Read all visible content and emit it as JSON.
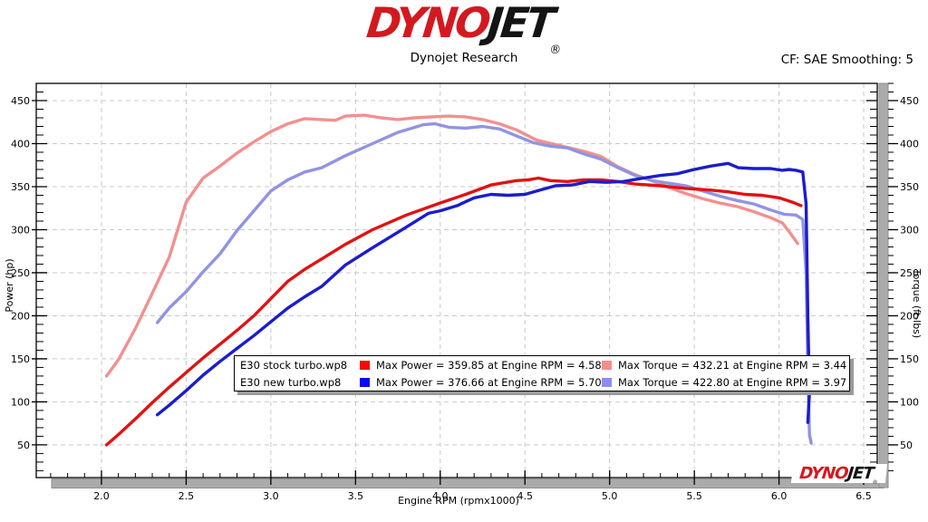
{
  "header": {
    "logo_dyno": "DYNO",
    "logo_jet": "JET",
    "registered": "®",
    "subtitle": "Dynojet Research",
    "correction": "CF: SAE Smoothing: 5"
  },
  "watermark": {
    "logo_dyno": "DYNO",
    "logo_jet": "JET",
    "registered": "®"
  },
  "legend": {
    "rows": [
      {
        "file": "E30 stock turbo.wp8",
        "power_color": "#f50808",
        "power_text": "Max Power = 359.85 at Engine RPM = 4.58",
        "torque_color": "#f88c8c",
        "torque_text": "Max Torque = 432.21 at Engine RPM = 3.44"
      },
      {
        "file": "E30 new turbo.wp8",
        "power_color": "#0808f0",
        "power_text": "Max Power = 376.66 at Engine RPM = 5.70",
        "torque_color": "#8c8cf8",
        "torque_text": "Max Torque = 422.80 at Engine RPM = 3.97"
      }
    ]
  },
  "chart_data": {
    "type": "line",
    "xlabel": "Engine RPM (rpmx1000)",
    "ylabel_left": "Power (hp)",
    "ylabel_right": "Torque (ft-lbs)",
    "x_range": [
      1.615,
      6.58
    ],
    "y_range": [
      12,
      470
    ],
    "x_major_ticks": [
      2.0,
      2.5,
      3.0,
      3.5,
      4.0,
      4.5,
      5.0,
      5.5,
      6.0,
      6.5
    ],
    "x_minor_step": 0.1,
    "y_major_ticks": [
      50,
      100,
      150,
      200,
      250,
      300,
      350,
      400,
      450
    ],
    "y_minor_step": 10,
    "grid": true,
    "grid_color": "#c9c9c9",
    "series": [
      {
        "name": "E30 stock turbo.wp8 - Torque",
        "color": "#f2908f",
        "points": [
          [
            2.03,
            130
          ],
          [
            2.1,
            149
          ],
          [
            2.2,
            185
          ],
          [
            2.3,
            226
          ],
          [
            2.4,
            268
          ],
          [
            2.5,
            332
          ],
          [
            2.6,
            360
          ],
          [
            2.7,
            374
          ],
          [
            2.8,
            389
          ],
          [
            2.9,
            402
          ],
          [
            3.0,
            414
          ],
          [
            3.1,
            423
          ],
          [
            3.2,
            429
          ],
          [
            3.3,
            428
          ],
          [
            3.38,
            427
          ],
          [
            3.44,
            432
          ],
          [
            3.55,
            433
          ],
          [
            3.65,
            430
          ],
          [
            3.75,
            428
          ],
          [
            3.85,
            430
          ],
          [
            3.95,
            431
          ],
          [
            4.05,
            432
          ],
          [
            4.15,
            431
          ],
          [
            4.25,
            428
          ],
          [
            4.35,
            423
          ],
          [
            4.45,
            416
          ],
          [
            4.57,
            404
          ],
          [
            4.7,
            398
          ],
          [
            4.85,
            391
          ],
          [
            4.95,
            385
          ],
          [
            5.05,
            373
          ],
          [
            5.15,
            364
          ],
          [
            5.25,
            357
          ],
          [
            5.35,
            349
          ],
          [
            5.45,
            342
          ],
          [
            5.55,
            336
          ],
          [
            5.65,
            331
          ],
          [
            5.75,
            327
          ],
          [
            5.85,
            321
          ],
          [
            5.95,
            314
          ],
          [
            6.02,
            308
          ],
          [
            6.07,
            295
          ],
          [
            6.11,
            284
          ]
        ]
      },
      {
        "name": "E30 new turbo.wp8 - Torque",
        "color": "#9193e2",
        "points": [
          [
            2.33,
            192
          ],
          [
            2.4,
            209
          ],
          [
            2.5,
            228
          ],
          [
            2.6,
            251
          ],
          [
            2.7,
            272
          ],
          [
            2.8,
            299
          ],
          [
            2.9,
            322
          ],
          [
            3.0,
            345
          ],
          [
            3.1,
            358
          ],
          [
            3.2,
            367
          ],
          [
            3.3,
            372
          ],
          [
            3.44,
            386
          ],
          [
            3.6,
            400
          ],
          [
            3.75,
            413
          ],
          [
            3.9,
            422
          ],
          [
            3.97,
            423
          ],
          [
            4.05,
            419
          ],
          [
            4.15,
            418
          ],
          [
            4.25,
            420
          ],
          [
            4.35,
            417
          ],
          [
            4.45,
            409
          ],
          [
            4.55,
            401
          ],
          [
            4.65,
            397
          ],
          [
            4.75,
            395
          ],
          [
            4.85,
            388
          ],
          [
            4.95,
            382
          ],
          [
            5.05,
            372
          ],
          [
            5.15,
            363
          ],
          [
            5.25,
            357
          ],
          [
            5.35,
            354
          ],
          [
            5.45,
            351
          ],
          [
            5.55,
            345
          ],
          [
            5.65,
            339
          ],
          [
            5.75,
            334
          ],
          [
            5.85,
            330
          ],
          [
            5.95,
            323
          ],
          [
            6.03,
            318
          ],
          [
            6.1,
            317
          ],
          [
            6.14,
            312
          ],
          [
            6.16,
            250
          ],
          [
            6.17,
            140
          ],
          [
            6.18,
            62
          ],
          [
            6.19,
            52
          ]
        ]
      },
      {
        "name": "E30 stock turbo.wp8 - Power",
        "color": "#e01212",
        "points": [
          [
            2.03,
            50
          ],
          [
            2.1,
            62
          ],
          [
            2.2,
            80
          ],
          [
            2.3,
            99
          ],
          [
            2.4,
            117
          ],
          [
            2.5,
            134
          ],
          [
            2.6,
            151
          ],
          [
            2.7,
            167
          ],
          [
            2.8,
            183
          ],
          [
            2.9,
            200
          ],
          [
            3.0,
            220
          ],
          [
            3.1,
            240
          ],
          [
            3.2,
            254
          ],
          [
            3.3,
            266
          ],
          [
            3.44,
            283
          ],
          [
            3.6,
            300
          ],
          [
            3.8,
            317
          ],
          [
            4.0,
            331
          ],
          [
            4.15,
            341
          ],
          [
            4.3,
            352
          ],
          [
            4.45,
            357
          ],
          [
            4.52,
            358
          ],
          [
            4.58,
            360
          ],
          [
            4.65,
            357
          ],
          [
            4.75,
            356
          ],
          [
            4.85,
            358
          ],
          [
            4.95,
            358
          ],
          [
            5.05,
            356
          ],
          [
            5.15,
            353
          ],
          [
            5.3,
            351
          ],
          [
            5.45,
            348
          ],
          [
            5.6,
            346
          ],
          [
            5.7,
            344
          ],
          [
            5.8,
            341
          ],
          [
            5.9,
            340
          ],
          [
            6.0,
            337
          ],
          [
            6.08,
            332
          ],
          [
            6.13,
            328
          ]
        ]
      },
      {
        "name": "E30 new turbo.wp8 - Power",
        "color": "#1c1ccd",
        "points": [
          [
            2.33,
            85
          ],
          [
            2.4,
            96
          ],
          [
            2.5,
            113
          ],
          [
            2.6,
            131
          ],
          [
            2.7,
            147
          ],
          [
            2.8,
            162
          ],
          [
            2.9,
            177
          ],
          [
            3.0,
            193
          ],
          [
            3.1,
            209
          ],
          [
            3.2,
            222
          ],
          [
            3.3,
            234
          ],
          [
            3.44,
            259
          ],
          [
            3.6,
            279
          ],
          [
            3.8,
            303
          ],
          [
            3.93,
            319
          ],
          [
            4.0,
            322
          ],
          [
            4.1,
            328
          ],
          [
            4.2,
            337
          ],
          [
            4.3,
            341
          ],
          [
            4.4,
            340
          ],
          [
            4.5,
            341
          ],
          [
            4.57,
            345
          ],
          [
            4.68,
            351
          ],
          [
            4.78,
            352
          ],
          [
            4.88,
            356
          ],
          [
            4.98,
            355
          ],
          [
            5.08,
            356
          ],
          [
            5.2,
            360
          ],
          [
            5.3,
            363
          ],
          [
            5.4,
            365
          ],
          [
            5.5,
            370
          ],
          [
            5.6,
            374
          ],
          [
            5.7,
            377
          ],
          [
            5.76,
            372
          ],
          [
            5.85,
            371
          ],
          [
            5.95,
            371
          ],
          [
            6.02,
            369
          ],
          [
            6.06,
            370
          ],
          [
            6.1,
            369
          ],
          [
            6.14,
            367
          ],
          [
            6.16,
            330
          ],
          [
            6.17,
            200
          ],
          [
            6.18,
            110
          ],
          [
            6.17,
            76
          ]
        ]
      }
    ]
  }
}
